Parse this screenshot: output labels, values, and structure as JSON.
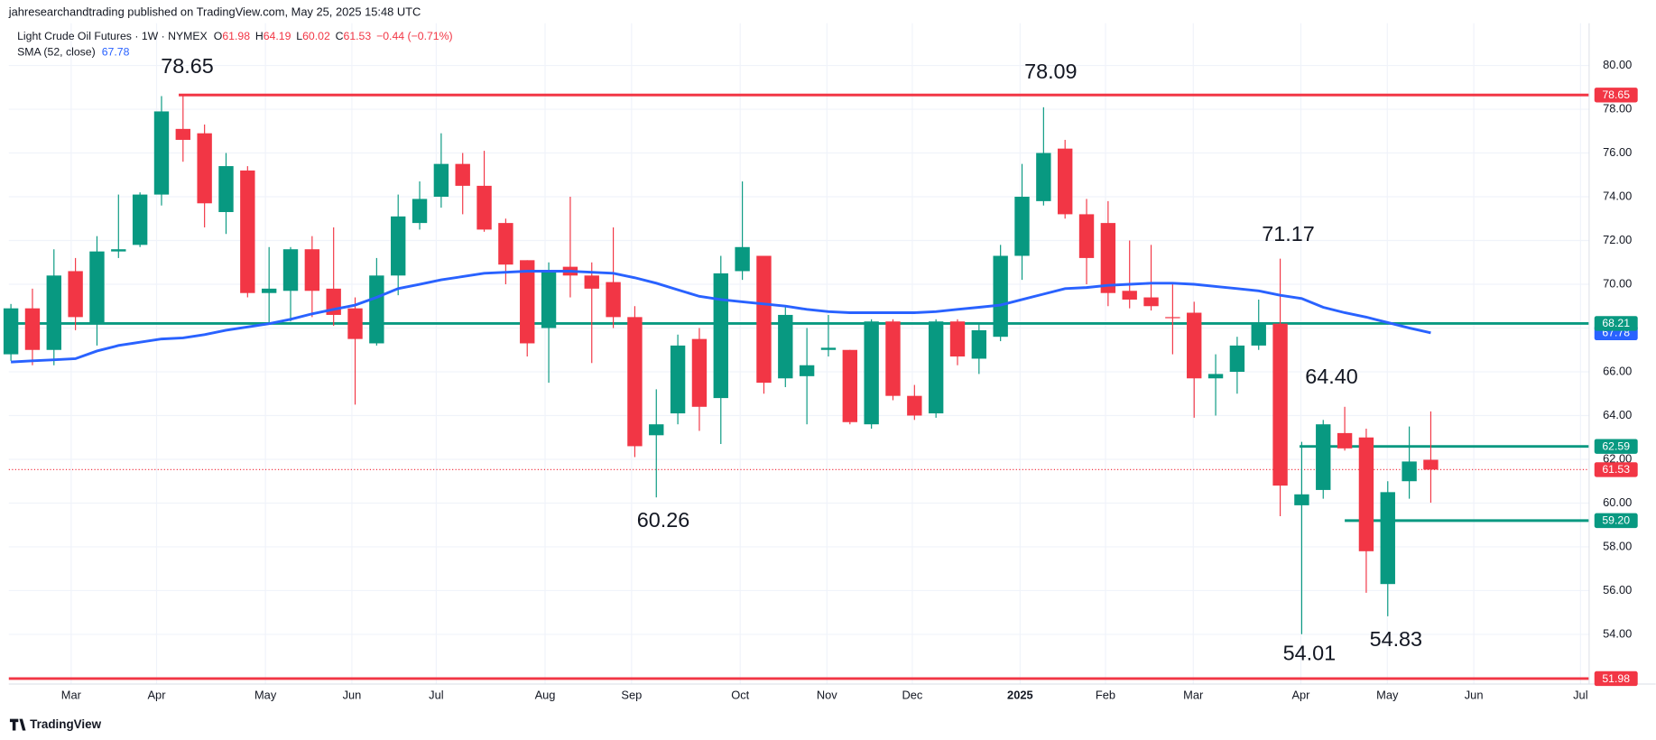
{
  "header": "jahresearchandtrading published on TradingView.com, May 25, 2025 15:48 UTC",
  "brand": "TradingView",
  "chart_data": {
    "type": "candlestick",
    "title": "Light Crude Oil Futures · 1W · NYMEX",
    "ohlc_prefixes": [
      "O",
      "H",
      "L",
      "C"
    ],
    "change": "−0.44 (−0.71%)",
    "up_color": "#089981",
    "down_color": "#f23645",
    "open": [
      66.8,
      68.9,
      67.0,
      70.6,
      68.2,
      71.5,
      71.8,
      74.1,
      77.1,
      76.9,
      73.3,
      75.2,
      69.6,
      69.7,
      71.6,
      69.8,
      68.9,
      67.3,
      70.4,
      72.8,
      74.0,
      75.5,
      74.5,
      72.8,
      71.1,
      68.0,
      70.8,
      70.4,
      70.1,
      68.5,
      63.1,
      64.1,
      67.5,
      64.8,
      70.6,
      71.3,
      65.7,
      65.8,
      67.0,
      67.0,
      63.6,
      68.3,
      64.9,
      64.1,
      68.3,
      66.6,
      67.6,
      71.3,
      73.8,
      76.2,
      73.2,
      72.8,
      69.7,
      69.4,
      68.5,
      68.7,
      65.7,
      66.0,
      67.2,
      68.2,
      59.9,
      60.6,
      63.2,
      63.0,
      56.3,
      61.0,
      61.98
    ],
    "high": [
      69.1,
      69.8,
      71.6,
      71.2,
      72.2,
      74.1,
      74.2,
      78.6,
      78.65,
      77.3,
      76.0,
      75.4,
      71.7,
      71.7,
      72.2,
      72.6,
      69.4,
      71.2,
      74.1,
      74.7,
      76.9,
      76.0,
      76.1,
      73.0,
      71.1,
      71.0,
      74.0,
      71.0,
      72.6,
      69.0,
      65.2,
      67.7,
      68.0,
      71.3,
      74.7,
      71.3,
      69.0,
      68.0,
      68.6,
      67.0,
      68.4,
      68.4,
      65.4,
      68.4,
      68.4,
      68.2,
      71.8,
      75.5,
      78.09,
      76.6,
      73.9,
      73.8,
      72.0,
      71.8,
      70.0,
      69.2,
      66.8,
      67.6,
      69.3,
      71.17,
      62.8,
      63.8,
      64.4,
      63.4,
      61.0,
      63.5,
      64.19
    ],
    "low": [
      66.5,
      66.3,
      66.3,
      67.9,
      67.2,
      71.2,
      71.7,
      73.6,
      75.6,
      72.6,
      72.3,
      69.4,
      68.2,
      68.3,
      68.5,
      68.1,
      64.5,
      67.2,
      69.5,
      72.5,
      73.5,
      73.2,
      72.4,
      70.0,
      66.7,
      65.5,
      69.4,
      66.4,
      68.0,
      62.1,
      60.26,
      63.6,
      63.3,
      62.7,
      70.2,
      65.0,
      65.3,
      63.6,
      66.7,
      63.6,
      63.4,
      64.7,
      63.8,
      63.9,
      66.3,
      65.9,
      67.4,
      70.2,
      73.6,
      73.0,
      70.0,
      69.0,
      68.9,
      68.8,
      66.8,
      63.9,
      64.0,
      65.0,
      67.0,
      59.4,
      54.01,
      60.2,
      62.4,
      55.9,
      54.83,
      60.2,
      60.02
    ],
    "close": [
      68.9,
      67.0,
      70.4,
      68.5,
      71.5,
      71.6,
      74.1,
      77.9,
      76.6,
      73.7,
      75.4,
      69.6,
      69.8,
      71.6,
      69.7,
      68.6,
      67.5,
      70.4,
      73.1,
      73.9,
      75.5,
      74.5,
      72.5,
      70.9,
      67.3,
      70.6,
      70.4,
      69.8,
      68.5,
      62.6,
      63.6,
      67.2,
      64.4,
      70.5,
      71.7,
      65.5,
      68.6,
      66.3,
      67.1,
      63.7,
      68.3,
      64.9,
      64.0,
      68.3,
      66.7,
      67.9,
      71.3,
      74.0,
      76.0,
      73.2,
      71.2,
      69.6,
      69.3,
      69.0,
      68.45,
      65.7,
      65.9,
      67.2,
      68.2,
      60.8,
      60.4,
      63.6,
      62.5,
      57.8,
      60.5,
      61.9,
      61.53
    ],
    "series": [
      {
        "name": "SMA (52, close)",
        "color": "#2962ff",
        "values": [
          66.45,
          66.5,
          66.55,
          66.6,
          66.95,
          67.2,
          67.35,
          67.5,
          67.55,
          67.7,
          67.9,
          68.05,
          68.2,
          68.4,
          68.65,
          68.85,
          69.05,
          69.4,
          69.8,
          70.0,
          70.2,
          70.35,
          70.5,
          70.55,
          70.6,
          70.6,
          70.6,
          70.55,
          70.5,
          70.3,
          70.05,
          69.75,
          69.45,
          69.3,
          69.2,
          69.1,
          69.0,
          68.85,
          68.75,
          68.7,
          68.7,
          68.7,
          68.7,
          68.75,
          68.85,
          68.95,
          69.05,
          69.3,
          69.55,
          69.8,
          69.85,
          69.95,
          70.0,
          70.05,
          70.05,
          70.0,
          69.9,
          69.8,
          69.7,
          69.5,
          69.35,
          68.95,
          68.7,
          68.5,
          68.25,
          68.0,
          67.78
        ]
      }
    ],
    "levels": [
      {
        "value": 78.65,
        "color": "#f23645",
        "start": 7.8
      },
      {
        "value": 68.21,
        "color": "#089981"
      },
      {
        "value": 62.59,
        "color": "#089981",
        "start": 59.9
      },
      {
        "value": {
          "value": 59.2,
          "label": "59.20"
        },
        "color": "#089981",
        "start": 62.0
      },
      {
        "value": 51.98,
        "color": "#f23645"
      }
    ],
    "annotations": [
      "78.65",
      "78.09",
      "71.17",
      "64.40",
      "60.26",
      "54.01",
      "54.83"
    ],
    "xlim": [
      -0.098,
      73.36
    ],
    "ylim": [
      51.73,
      81.93
    ],
    "xticks": [
      {
        "value": 2.8,
        "label": "Mar"
      },
      {
        "value": 6.77,
        "label": "Apr"
      },
      {
        "value": 11.83,
        "label": "May"
      },
      {
        "value": 15.85,
        "label": "Jun"
      },
      {
        "value": 19.77,
        "label": "Jul"
      },
      {
        "value": 24.83,
        "label": "Aug"
      },
      {
        "value": 28.85,
        "label": "Sep"
      },
      {
        "value": 33.9,
        "label": "Oct"
      },
      {
        "value": 37.93,
        "label": "Nov"
      },
      {
        "value": 41.9,
        "label": "Dec"
      },
      {
        "value": 46.91,
        "label": "2025"
      },
      {
        "value": 50.88,
        "label": "Feb"
      },
      {
        "value": 54.96,
        "label": "Mar"
      },
      {
        "value": 59.96,
        "label": "Apr"
      },
      {
        "value": 63.98,
        "label": "May"
      },
      {
        "value": 68.0,
        "label": "Jun"
      },
      {
        "value": 72.96,
        "label": "Jul"
      }
    ],
    "yticks": [
      {
        "value": 54,
        "label": "54.00"
      },
      {
        "value": 56,
        "label": "56.00"
      },
      {
        "value": 58,
        "label": "58.00"
      },
      {
        "value": 60,
        "label": "60.00"
      },
      {
        "value": 62,
        "label": "62.00"
      },
      {
        "value": 64,
        "label": "64.00"
      },
      {
        "value": 66,
        "label": "66.00"
      },
      {
        "value": 68,
        "label": "68.00"
      },
      {
        "value": 70,
        "label": "70.00"
      },
      {
        "value": 72,
        "label": "72.00"
      },
      {
        "value": 74,
        "label": "74.00"
      },
      {
        "value": 76,
        "label": "76.00"
      },
      {
        "value": 78,
        "label": "78.00"
      },
      {
        "value": 80,
        "label": "80.00"
      }
    ]
  }
}
